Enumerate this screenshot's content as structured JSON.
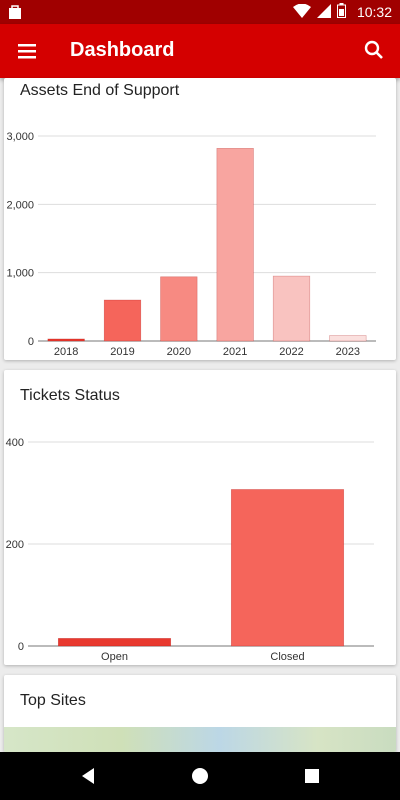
{
  "status": {
    "time": "10:32"
  },
  "appbar": {
    "title": "Dashboard"
  },
  "cards": {
    "assets": {
      "title": "Assets End of Support"
    },
    "tickets": {
      "title": "Tickets Status"
    },
    "sites": {
      "title": "Top Sites"
    }
  },
  "chart_data": [
    {
      "type": "bar",
      "title": "Assets End of Support",
      "categories": [
        "2018",
        "2019",
        "2020",
        "2021",
        "2022",
        "2023"
      ],
      "values": [
        30,
        600,
        940,
        2820,
        950,
        80
      ],
      "ylim": [
        0,
        3000
      ],
      "yticks": [
        0,
        1000,
        2000,
        3000
      ],
      "ytick_labels": [
        "0",
        "1,000",
        "2,000",
        "3,000"
      ],
      "colors": [
        "#e8392f",
        "#f5655b",
        "#f78a82",
        "#f8a5a0",
        "#f9c3c0",
        "#fbe0de"
      ],
      "grid": true
    },
    {
      "type": "bar",
      "title": "Tickets Status",
      "categories": [
        "Open",
        "Closed"
      ],
      "values": [
        15,
        307
      ],
      "ylim": [
        0,
        400
      ],
      "yticks": [
        0,
        200,
        400
      ],
      "ytick_labels": [
        "0",
        "200",
        "400"
      ],
      "colors": [
        "#e8392f",
        "#f5655b"
      ],
      "grid": true
    }
  ]
}
